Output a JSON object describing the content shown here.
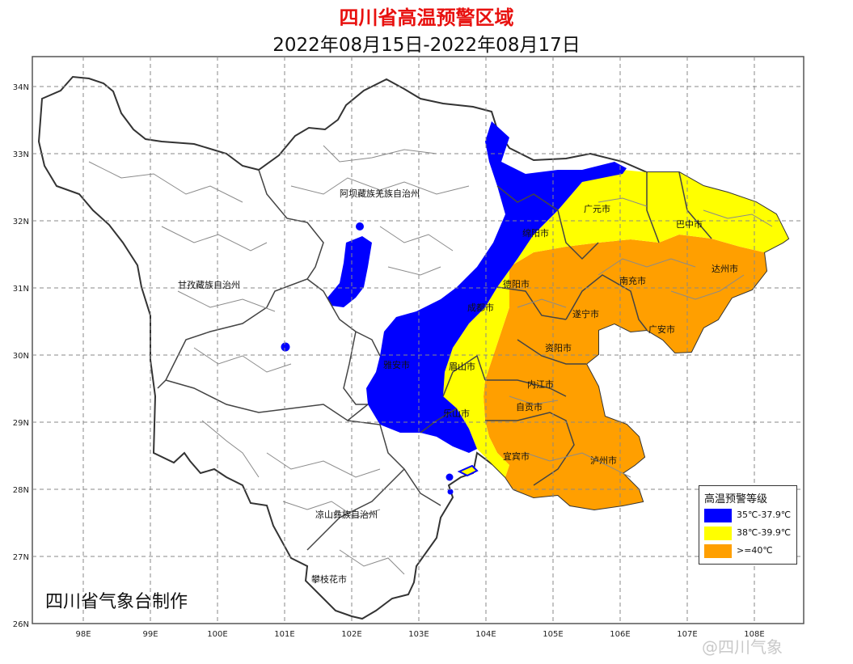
{
  "title": "四川省高温预警区域",
  "subtitle": "2022年08月15日-2022年08月17日",
  "axes": {
    "lat_labels": [
      "34N",
      "33N",
      "32N",
      "31N",
      "30N",
      "29N",
      "28N",
      "27N",
      "26N"
    ],
    "lon_labels": [
      "98E",
      "99E",
      "100E",
      "101E",
      "102E",
      "103E",
      "104E",
      "105E",
      "106E",
      "107E",
      "108E"
    ]
  },
  "regions": [
    "阿坝藏族羌族自治州",
    "甘孜藏族自治州",
    "凉山彝族自治州",
    "攀枝花市",
    "雅安市",
    "眉山市",
    "乐山市",
    "宜宾市",
    "泸州市",
    "自贡市",
    "内江市",
    "资阳市",
    "成都市",
    "德阳市",
    "绵阳市",
    "广元市",
    "巴中市",
    "达州市",
    "南充市",
    "遂宁市",
    "广安市"
  ],
  "legend": {
    "title": "高温预警等级",
    "items": [
      {
        "label": "35℃-37.9℃",
        "color": "#0000ff"
      },
      {
        "label": "38℃-39.9℃",
        "color": "#ffff00"
      },
      {
        "label": ">=40℃",
        "color": "#ff9f00"
      }
    ]
  },
  "producer": "四川省气象台制作",
  "watermark": "@四川气象"
}
